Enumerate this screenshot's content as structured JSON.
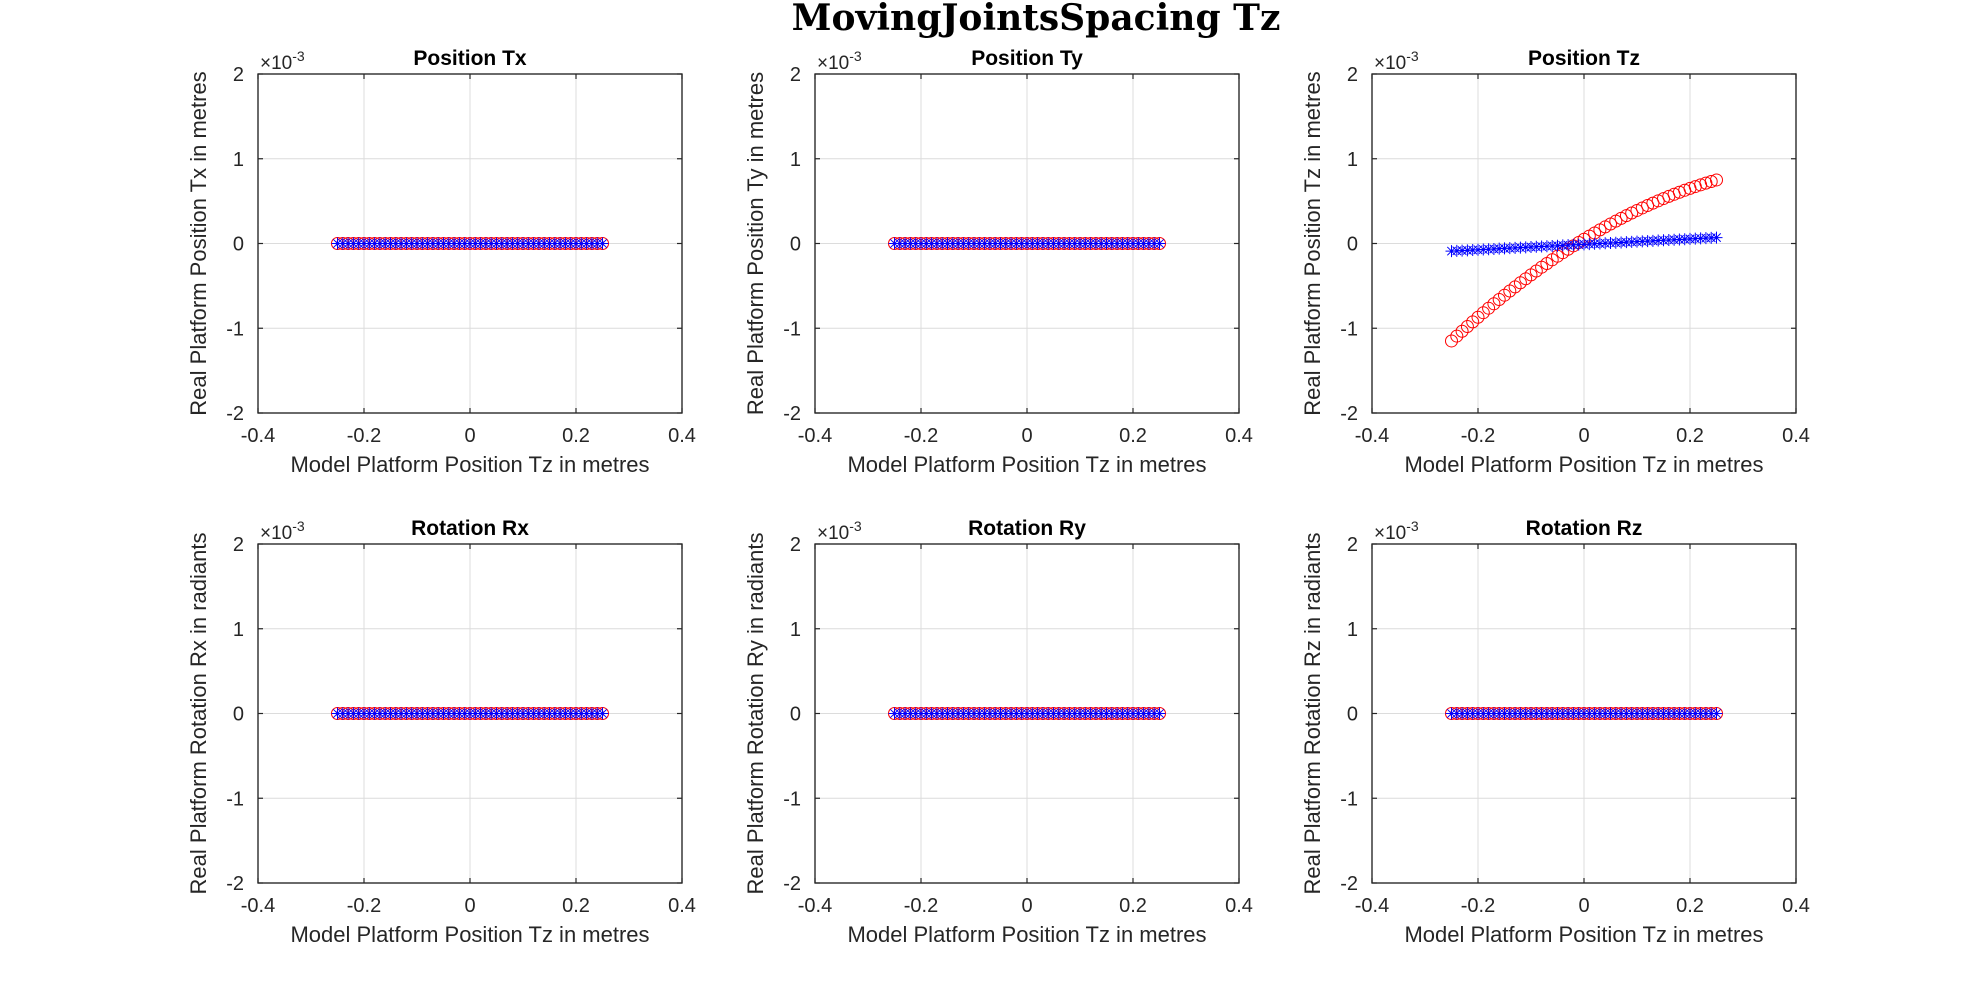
{
  "figure": {
    "title": "MovingJointsSpacing Tz",
    "exponent_label": "×10",
    "exponent_power": "-3"
  },
  "chart_data": [
    {
      "type": "scatter",
      "title": "Position Tx",
      "xlabel": "Model Platform Position Tz in metres",
      "ylabel": "Real Platform Position Tx in metres",
      "xlim": [
        -0.4,
        0.4
      ],
      "ylim": [
        -2,
        2
      ],
      "y_scale": "×10^-3",
      "xticks": [
        "-0.4",
        "-0.2",
        "0",
        "0.2",
        "0.4"
      ],
      "yticks": [
        "-2",
        "-1",
        "0",
        "1",
        "2"
      ],
      "grid": true,
      "series": [
        {
          "marker": "o",
          "color": "#ff0000",
          "x_range": [
            -0.25,
            0.25
          ],
          "count": 51,
          "y_start": 0,
          "y_end": 0,
          "curve": 0
        },
        {
          "marker": "*",
          "color": "#0000ff",
          "x_range": [
            -0.25,
            0.25
          ],
          "count": 51,
          "y_start": 0,
          "y_end": 0,
          "curve": 0
        }
      ]
    },
    {
      "type": "scatter",
      "title": "Position Ty",
      "xlabel": "Model Platform Position Tz in metres",
      "ylabel": "Real Platform Position Ty in metres",
      "xlim": [
        -0.4,
        0.4
      ],
      "ylim": [
        -2,
        2
      ],
      "y_scale": "×10^-3",
      "xticks": [
        "-0.4",
        "-0.2",
        "0",
        "0.2",
        "0.4"
      ],
      "yticks": [
        "-2",
        "-1",
        "0",
        "1",
        "2"
      ],
      "grid": true,
      "series": [
        {
          "marker": "o",
          "color": "#ff0000",
          "x_range": [
            -0.25,
            0.25
          ],
          "count": 51,
          "y_start": 0,
          "y_end": 0,
          "curve": 0
        },
        {
          "marker": "*",
          "color": "#0000ff",
          "x_range": [
            -0.25,
            0.25
          ],
          "count": 51,
          "y_start": 0,
          "y_end": 0,
          "curve": 0
        }
      ]
    },
    {
      "type": "scatter",
      "title": "Position Tz",
      "xlabel": "Model Platform Position Tz in metres",
      "ylabel": "Real Platform Position Tz in metres",
      "xlim": [
        -0.4,
        0.4
      ],
      "ylim": [
        -2,
        2
      ],
      "y_scale": "×10^-3",
      "xticks": [
        "-0.4",
        "-0.2",
        "0",
        "0.2",
        "0.4"
      ],
      "yticks": [
        "-2",
        "-1",
        "0",
        "1",
        "2"
      ],
      "grid": true,
      "series": [
        {
          "marker": "o",
          "color": "#ff0000",
          "x_range": [
            -0.25,
            0.25
          ],
          "count": 51,
          "y_start": -1.15,
          "y_end": 0.75,
          "curve": -0.25
        },
        {
          "marker": "*",
          "color": "#0000ff",
          "x_range": [
            -0.25,
            0.25
          ],
          "count": 51,
          "y_start": -0.09,
          "y_end": 0.07,
          "curve": 0
        }
      ]
    },
    {
      "type": "scatter",
      "title": "Rotation Rx",
      "xlabel": "Model Platform Position Tz in metres",
      "ylabel": "Real Platform Rotation Rx in radiants",
      "xlim": [
        -0.4,
        0.4
      ],
      "ylim": [
        -2,
        2
      ],
      "y_scale": "×10^-3",
      "xticks": [
        "-0.4",
        "-0.2",
        "0",
        "0.2",
        "0.4"
      ],
      "yticks": [
        "-2",
        "-1",
        "0",
        "1",
        "2"
      ],
      "grid": true,
      "series": [
        {
          "marker": "o",
          "color": "#ff0000",
          "x_range": [
            -0.25,
            0.25
          ],
          "count": 51,
          "y_start": 0,
          "y_end": 0,
          "curve": 0
        },
        {
          "marker": "*",
          "color": "#0000ff",
          "x_range": [
            -0.25,
            0.25
          ],
          "count": 51,
          "y_start": 0,
          "y_end": 0,
          "curve": 0
        }
      ]
    },
    {
      "type": "scatter",
      "title": "Rotation Ry",
      "xlabel": "Model Platform Position Tz in metres",
      "ylabel": "Real Platform Rotation Ry in radiants",
      "xlim": [
        -0.4,
        0.4
      ],
      "ylim": [
        -2,
        2
      ],
      "y_scale": "×10^-3",
      "xticks": [
        "-0.4",
        "-0.2",
        "0",
        "0.2",
        "0.4"
      ],
      "yticks": [
        "-2",
        "-1",
        "0",
        "1",
        "2"
      ],
      "grid": true,
      "series": [
        {
          "marker": "o",
          "color": "#ff0000",
          "x_range": [
            -0.25,
            0.25
          ],
          "count": 51,
          "y_start": 0,
          "y_end": 0,
          "curve": 0
        },
        {
          "marker": "*",
          "color": "#0000ff",
          "x_range": [
            -0.25,
            0.25
          ],
          "count": 51,
          "y_start": 0,
          "y_end": 0,
          "curve": 0
        }
      ]
    },
    {
      "type": "scatter",
      "title": "Rotation Rz",
      "xlabel": "Model Platform Position Tz in metres",
      "ylabel": "Real Platform Rotation Rz in radiants",
      "xlim": [
        -0.4,
        0.4
      ],
      "ylim": [
        -2,
        2
      ],
      "y_scale": "×10^-3",
      "xticks": [
        "-0.4",
        "-0.2",
        "0",
        "0.2",
        "0.4"
      ],
      "yticks": [
        "-2",
        "-1",
        "0",
        "1",
        "2"
      ],
      "grid": true,
      "series": [
        {
          "marker": "o",
          "color": "#ff0000",
          "x_range": [
            -0.25,
            0.25
          ],
          "count": 51,
          "y_start": 0,
          "y_end": 0,
          "curve": 0
        },
        {
          "marker": "*",
          "color": "#0000ff",
          "x_range": [
            -0.25,
            0.25
          ],
          "count": 51,
          "y_start": 0,
          "y_end": 0,
          "curve": 0
        }
      ]
    }
  ]
}
